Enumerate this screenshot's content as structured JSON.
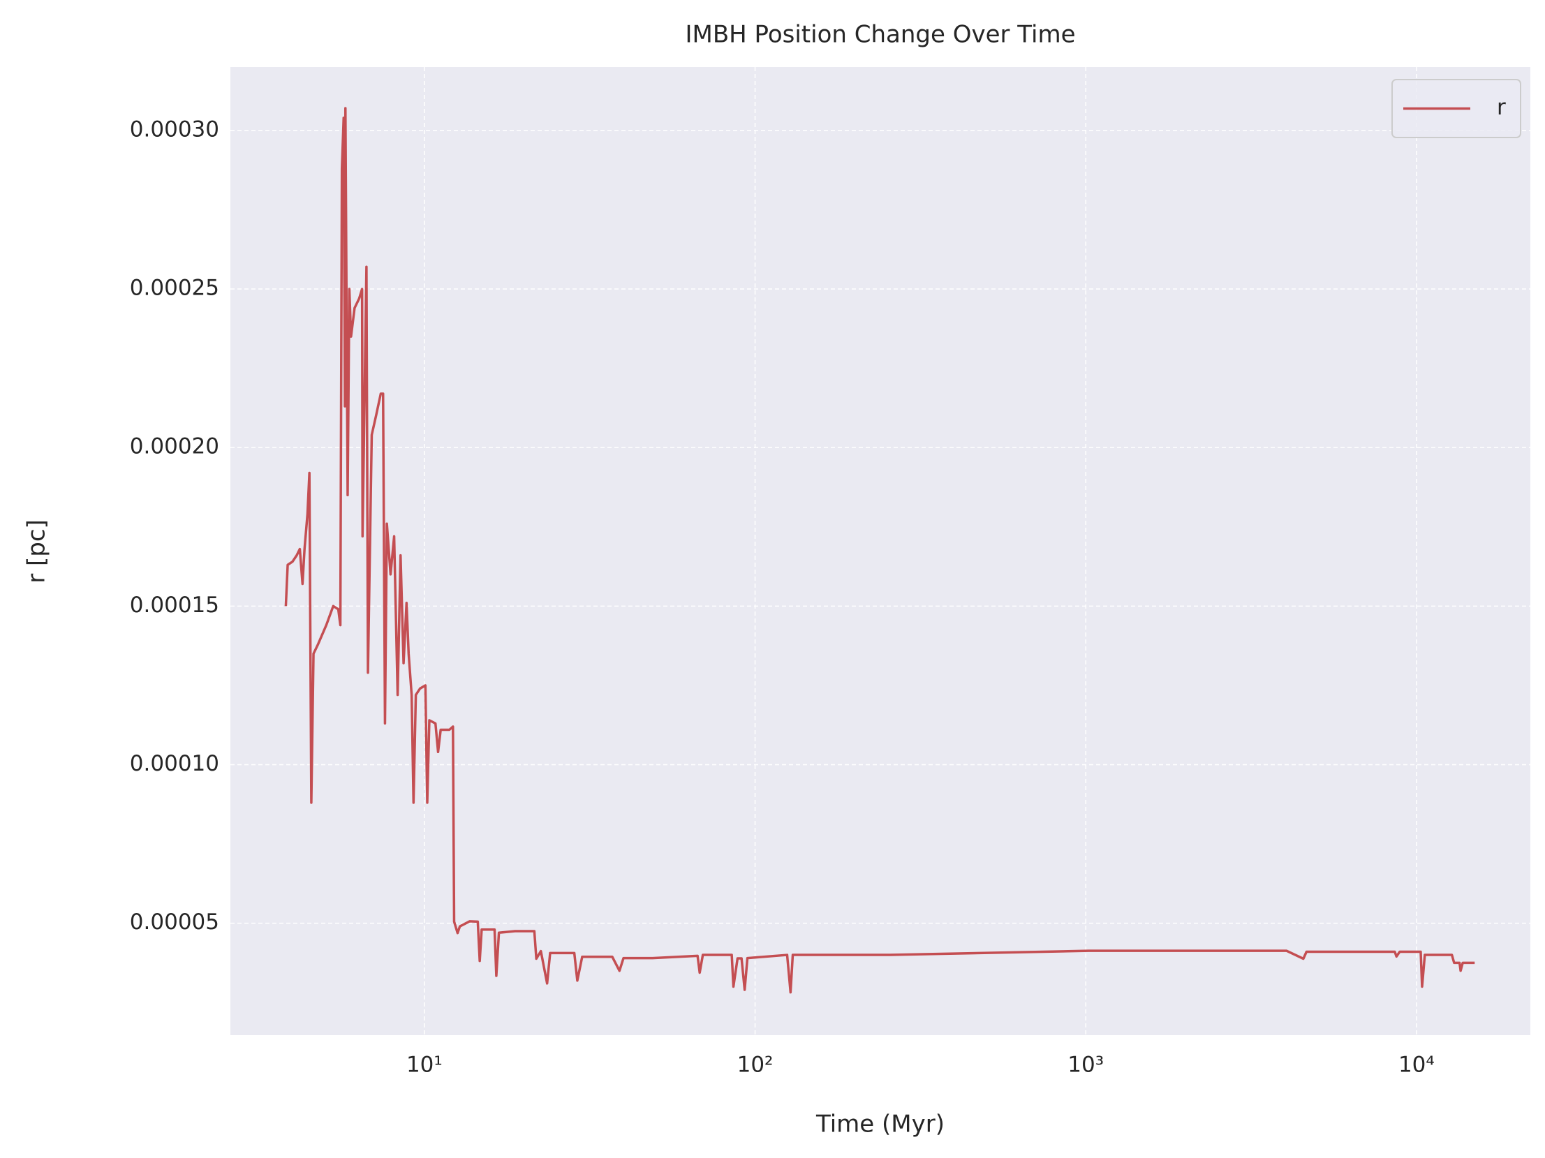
{
  "chart_data": {
    "type": "line",
    "title": "IMBH Position Change Over Time",
    "x_label": "Time (Myr)",
    "y_label": "r [pc]",
    "x_scale": "log",
    "grid": true,
    "legend_loc": "upper right",
    "xlim": [
      2.59,
      22100
    ],
    "ylim": [
      1.47e-05,
      0.00032
    ],
    "xticks": [
      {
        "value": 10,
        "label": "10¹"
      },
      {
        "value": 100,
        "label": "10²"
      },
      {
        "value": 1000,
        "label": "10³"
      },
      {
        "value": 10000,
        "label": "10⁴"
      }
    ],
    "yticks": [
      5e-05,
      {
        "value": 0.0001,
        "label": "0.00010"
      },
      {
        "value": 0.00015,
        "label": "0.00015"
      },
      {
        "value": 0.0002,
        "label": "0.00020"
      },
      {
        "value": 0.00025,
        "label": "0.00025"
      },
      {
        "value": 0.0003,
        "label": "0.00030"
      }
    ],
    "x": [
      3.81,
      3.86,
      3.99,
      4.11,
      4.2,
      4.28,
      4.34,
      4.43,
      4.49,
      4.55,
      4.62,
      4.77,
      5.05,
      5.3,
      5.49,
      5.57,
      5.63,
      5.7,
      5.75,
      5.77,
      5.86,
      5.93,
      6.0,
      6.15,
      6.35,
      6.48,
      6.5,
      6.68,
      6.75,
      6.93,
      7.14,
      7.38,
      7.5,
      7.6,
      7.7,
      7.9,
      8.1,
      8.3,
      8.47,
      8.65,
      8.83,
      8.96,
      9.15,
      9.27,
      9.42,
      9.7,
      10.07,
      10.2,
      10.35,
      10.8,
      11.0,
      11.2,
      11.9,
      12.2,
      12.3,
      12.6,
      12.8,
      13.7,
      14.5,
      14.7,
      14.9,
      16.3,
      16.5,
      16.8,
      18.8,
      21.5,
      21.8,
      22.5,
      23.5,
      24,
      28.4,
      29,
      30,
      37,
      38.9,
      40,
      49,
      67,
      68,
      69.5,
      85,
      86,
      88.5,
      91,
      93,
      94.8,
      125,
      128,
      130,
      256,
      1020,
      4050,
      4550,
      4650,
      8600,
      8700,
      8900,
      10300,
      10400,
      10600,
      12800,
      13000,
      13500,
      13600,
      13800,
      15000
    ],
    "series": [
      {
        "name": "r",
        "color": "#c44e52",
        "values": [
          0.00015,
          0.000163,
          0.000164,
          0.000166,
          0.000168,
          0.000157,
          0.000168,
          0.000179,
          0.000192,
          8.8e-05,
          0.000135,
          0.000138,
          0.000144,
          0.00015,
          0.000149,
          0.000144,
          0.000288,
          0.000304,
          0.000213,
          0.000307,
          0.000185,
          0.00025,
          0.000235,
          0.000244,
          0.000247,
          0.00025,
          0.000172,
          0.000257,
          0.000129,
          0.000204,
          0.00021,
          0.000217,
          0.000217,
          0.000113,
          0.000176,
          0.00016,
          0.000172,
          0.000122,
          0.000166,
          0.000132,
          0.000151,
          0.000135,
          0.000122,
          8.8e-05,
          0.000122,
          0.000124,
          0.000125,
          8.8e-05,
          0.000114,
          0.000113,
          0.000104,
          0.000111,
          0.000111,
          0.000112,
          5.05e-05,
          4.69e-05,
          4.9e-05,
          5.06e-05,
          5.05e-05,
          3.81e-05,
          4.8e-05,
          4.8e-05,
          3.34e-05,
          4.7e-05,
          4.75e-05,
          4.75e-05,
          3.88e-05,
          4.12e-05,
          3.1e-05,
          4.06e-05,
          4.06e-05,
          3.19e-05,
          3.94e-05,
          3.94e-05,
          3.5e-05,
          3.9e-05,
          3.9e-05,
          3.97e-05,
          3.44e-05,
          4e-05,
          4e-05,
          3e-05,
          3.89e-05,
          3.89e-05,
          2.9e-05,
          3.9e-05,
          4e-05,
          2.82e-05,
          4e-05,
          4e-05,
          4.13e-05,
          4.13e-05,
          3.88e-05,
          4.1e-05,
          4.1e-05,
          3.95e-05,
          4.1e-05,
          4.1e-05,
          3e-05,
          4e-05,
          4e-05,
          3.75e-05,
          3.75e-05,
          3.5e-05,
          3.75e-05,
          3.75e-05
        ]
      }
    ]
  }
}
